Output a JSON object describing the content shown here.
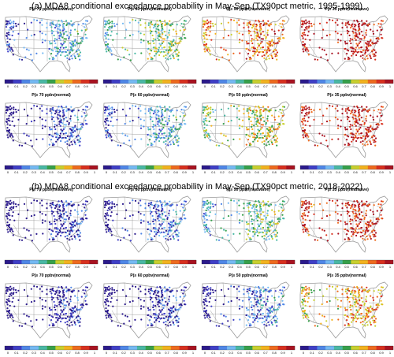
{
  "sections": [
    {
      "title": "(a) MDA8 conditional exceedance probability in May-Sep (TX90pct metric, 1995-1999)"
    },
    {
      "title": "(b) MDA8 conditional exceedance probability in May-Sep (TX90pct metric, 2018-2022)"
    }
  ],
  "panels": [
    {
      "title": "P(≥ 70 ppbv|heatwave)",
      "section": 0,
      "row": 0,
      "col": 0,
      "level": 0.3
    },
    {
      "title": "P(≥ 60 ppbv|heatwave)",
      "section": 0,
      "row": 0,
      "col": 1,
      "level": 0.5
    },
    {
      "title": "P(≥ 50 ppbv|heatwave)",
      "section": 0,
      "row": 0,
      "col": 2,
      "level": 0.78
    },
    {
      "title": "P(≥ 35 ppbv|heatwave)",
      "section": 0,
      "row": 0,
      "col": 3,
      "level": 0.95
    },
    {
      "title": "P(≥ 70 ppbv|normal)",
      "section": 0,
      "row": 1,
      "col": 0,
      "level": 0.12
    },
    {
      "title": "P(≥ 60 ppbv|normal)",
      "section": 0,
      "row": 1,
      "col": 1,
      "level": 0.3
    },
    {
      "title": "P(≥ 50 ppbv|normal)",
      "section": 0,
      "row": 1,
      "col": 2,
      "level": 0.6
    },
    {
      "title": "P(≥ 35 ppbv|normal)",
      "section": 0,
      "row": 1,
      "col": 3,
      "level": 0.92
    },
    {
      "title": "P(≥ 70 ppbv|heatwave)",
      "section": 1,
      "row": 0,
      "col": 0,
      "level": 0.05
    },
    {
      "title": "P(≥ 60 ppbv|heatwave)",
      "section": 1,
      "row": 0,
      "col": 1,
      "level": 0.18
    },
    {
      "title": "P(≥ 50 ppbv|heatwave)",
      "section": 1,
      "row": 0,
      "col": 2,
      "level": 0.45
    },
    {
      "title": "P(≥ 35 ppbv|heatwave)",
      "section": 1,
      "row": 0,
      "col": 3,
      "level": 0.9
    },
    {
      "title": "P(≥ 70 ppbv|normal)",
      "section": 1,
      "row": 1,
      "col": 0,
      "level": 0.02
    },
    {
      "title": "P(≥ 60 ppbv|normal)",
      "section": 1,
      "row": 1,
      "col": 1,
      "level": 0.05
    },
    {
      "title": "P(≥ 50 ppbv|normal)",
      "section": 1,
      "row": 1,
      "col": 2,
      "level": 0.2
    },
    {
      "title": "P(≥ 35 ppbv|normal)",
      "section": 1,
      "row": 1,
      "col": 3,
      "level": 0.7
    }
  ],
  "colorbar": {
    "ticks": [
      "0",
      "0.1",
      "0.2",
      "0.3",
      "0.4",
      "0.5",
      "0.6",
      "0.7",
      "0.8",
      "0.9",
      "1"
    ],
    "colors": [
      "#2b1a8c",
      "#3f3fc6",
      "#4f86e6",
      "#74b9f2",
      "#49b8a4",
      "#36a04a",
      "#c8cf2e",
      "#f2b21e",
      "#ee6a1e",
      "#d8301e",
      "#a81220"
    ]
  },
  "map_colors": {
    "land": "#ffffff",
    "state_borders": "#8c8c8c",
    "coastline": "#9a9a9a"
  }
}
